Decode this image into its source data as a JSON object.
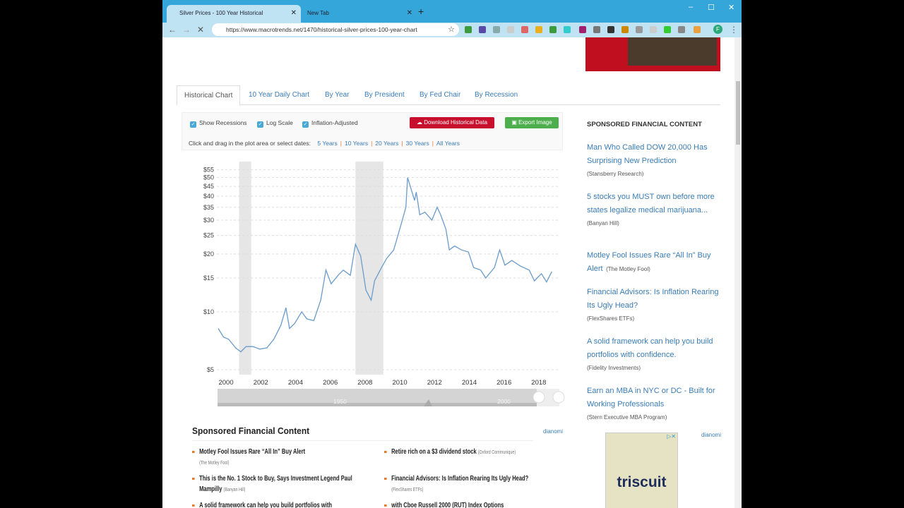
{
  "browser": {
    "tabs": [
      {
        "label": "Silver Prices - 100 Year Historical",
        "active": true
      },
      {
        "label": "New Tab",
        "active": false
      }
    ],
    "url": "https://www.macrotrends.net/1470/historical-silver-prices-100-year-chart",
    "profile": "F"
  },
  "nav_tabs": [
    "Historical Chart",
    "10 Year Daily Chart",
    "By Year",
    "By President",
    "By Fed Chair",
    "By Recession"
  ],
  "controls": {
    "show_recessions": "Show Recessions",
    "log_scale": "Log Scale",
    "inflation": "Inflation-Adjusted",
    "download": "Download Historical Data",
    "export": "Export Image",
    "dates_prompt": "Click and drag in the plot area or select dates:",
    "ranges": [
      "5 Years",
      "10 Years",
      "20 Years",
      "30 Years",
      "All Years"
    ]
  },
  "chart_data": {
    "type": "line",
    "scale": "log",
    "grid": true,
    "line_color": "#6a9bcb",
    "ylim": [
      5,
      55
    ],
    "yticks": [
      "$5",
      "$10",
      "$15",
      "$20",
      "$25",
      "$30",
      "$35",
      "$40",
      "$45",
      "$50",
      "$55"
    ],
    "ytick_values": [
      5,
      10,
      15,
      20,
      25,
      30,
      35,
      40,
      45,
      50,
      55
    ],
    "xticks": [
      "2000",
      "2002",
      "2004",
      "2006",
      "2008",
      "2010",
      "2012",
      "2014",
      "2016",
      "2018"
    ],
    "recessions": [
      [
        2001.2,
        2001.9
      ],
      [
        2007.9,
        2009.5
      ]
    ],
    "navigator_labels": [
      "1950",
      "2000"
    ],
    "x": [
      2000.0,
      2000.3,
      2000.6,
      2001.0,
      2001.3,
      2001.6,
      2002.0,
      2002.4,
      2002.8,
      2003.2,
      2003.6,
      2003.9,
      2004.1,
      2004.4,
      2004.8,
      2005.1,
      2005.5,
      2005.9,
      2006.2,
      2006.5,
      2006.9,
      2007.2,
      2007.6,
      2007.9,
      2008.2,
      2008.5,
      2008.8,
      2009.0,
      2009.4,
      2009.7,
      2010.1,
      2010.5,
      2010.8,
      2010.9,
      2011.3,
      2011.4,
      2011.6,
      2011.9,
      2012.3,
      2012.6,
      2012.8,
      2013.1,
      2013.3,
      2013.6,
      2014.0,
      2014.4,
      2014.7,
      2015.1,
      2015.4,
      2015.9,
      2016.2,
      2016.5,
      2016.9,
      2017.4,
      2017.9,
      2018.2,
      2018.6,
      2018.9,
      2019.2
    ],
    "values": [
      8.2,
      7.4,
      7.2,
      6.5,
      6.2,
      6.6,
      6.6,
      6.4,
      6.5,
      7.2,
      8.5,
      10.5,
      8.2,
      8.7,
      10.0,
      9.2,
      9.0,
      11.5,
      16.5,
      14.0,
      15.5,
      16.5,
      15.5,
      22.5,
      19.5,
      13.0,
      11.5,
      14.5,
      17.0,
      19.0,
      21.0,
      28.0,
      35.0,
      50.0,
      38.0,
      42.0,
      32.0,
      33.0,
      30.0,
      35.0,
      32.0,
      27.0,
      21.0,
      22.0,
      21.0,
      20.5,
      17.0,
      16.5,
      15.0,
      17.0,
      21.0,
      17.5,
      18.5,
      17.3,
      16.5,
      14.5,
      15.8,
      14.3,
      16.2
    ]
  },
  "sidebar": {
    "title": "SPONSORED FINANCIAL CONTENT",
    "items": [
      {
        "title": "Man Who Called DOW 20,000 Has Surprising New Prediction",
        "source": "(Stansberry Research)"
      },
      {
        "title": "5 stocks you MUST own before more states legalize medical marijuana...",
        "source": "(Banyan Hill)"
      },
      {
        "title": "Motley Fool Issues Rare “All In” Buy Alert",
        "source": "(The Motley Fool)"
      },
      {
        "title": "Financial Advisors: Is Inflation Rearing Its Ugly Head?",
        "source": "(FlexShares ETFs)"
      },
      {
        "title": "A solid framework can help you build portfolios with confidence.",
        "source": "(Fidelity Investments)"
      },
      {
        "title": "Earn an MBA in NYC or DC - Built for Working Professionals",
        "source": "(Stern Executive MBA Program)"
      }
    ],
    "brand": "dianomi"
  },
  "bottom": {
    "title": "Sponsored Financial Content",
    "brand": "dianomi",
    "items": [
      {
        "title": "Motley Fool Issues Rare “All In” Buy Alert",
        "source": "(The Motley Fool)"
      },
      {
        "title": "Retire rich on a $3 dividend stock",
        "source": "(Oxford Communique)"
      },
      {
        "title": "This is the No. 1 Stock to Buy, Says Investment Legend Paul Mampilly",
        "source": "(Banyan Hill)"
      },
      {
        "title": "Financial Advisors: Is Inflation Rearing Its Ugly Head?",
        "source": "(FlexShares ETFs)"
      },
      {
        "title": "A solid framework can help you build portfolios with",
        "source": ""
      },
      {
        "title": "with Cboe Russell 2000 (RUT) Index Options",
        "source": ""
      }
    ]
  },
  "ad": {
    "brand": "triscuit"
  }
}
